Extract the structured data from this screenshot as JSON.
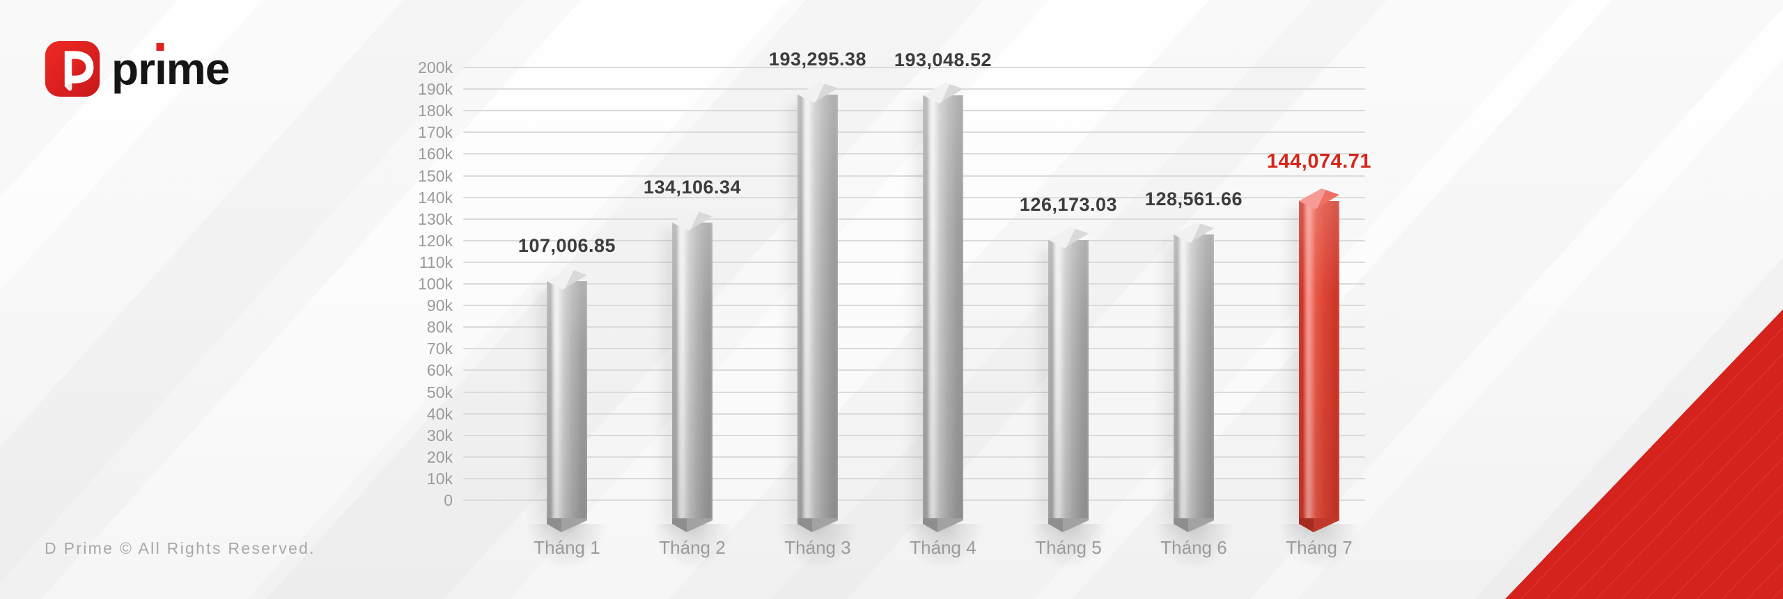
{
  "logo": {
    "brand_left": "pr",
    "brand_i": "ı",
    "brand_right": "me",
    "brand_full": "prime",
    "icon": "d-mark-icon"
  },
  "footer": {
    "copyright": "D Prime © All Rights Reserved."
  },
  "chart_data": {
    "type": "bar",
    "title": "",
    "xlabel": "",
    "ylabel": "",
    "categories": [
      "Tháng 1",
      "Tháng 2",
      "Tháng 3",
      "Tháng 4",
      "Tháng 5",
      "Tháng 6",
      "Tháng 7"
    ],
    "values": [
      107006.85,
      134106.34,
      193295.38,
      193048.52,
      126173.03,
      128561.66,
      144074.71
    ],
    "value_labels": [
      "107,006.85",
      "134,106.34",
      "193,295.38",
      "193,048.52",
      "126,173.03",
      "128,561.66",
      "144,074.71"
    ],
    "highlight_index": 6,
    "grid": true,
    "legend_position": "none",
    "y_axis": {
      "min": 0,
      "max": 200000,
      "tick_step": 10000,
      "tick_labels": [
        "0",
        "10k",
        "20k",
        "30k",
        "40k",
        "50k",
        "60k",
        "70k",
        "80k",
        "90k",
        "100k",
        "110k",
        "120k",
        "130k",
        "140k",
        "150k",
        "160k",
        "170k",
        "180k",
        "190k",
        "200k"
      ]
    },
    "colors": {
      "bar_gray": "#b3b3b3",
      "bar_red": "#e0503f",
      "value_label": "#3c3c3c",
      "value_label_highlight": "#d6261c",
      "axis_label": "#9b9b9b",
      "gridline": "#dadada",
      "corner_triangle_red": "#d5221c",
      "logo_red": "#e0211d",
      "logo_text": "#151515"
    }
  }
}
